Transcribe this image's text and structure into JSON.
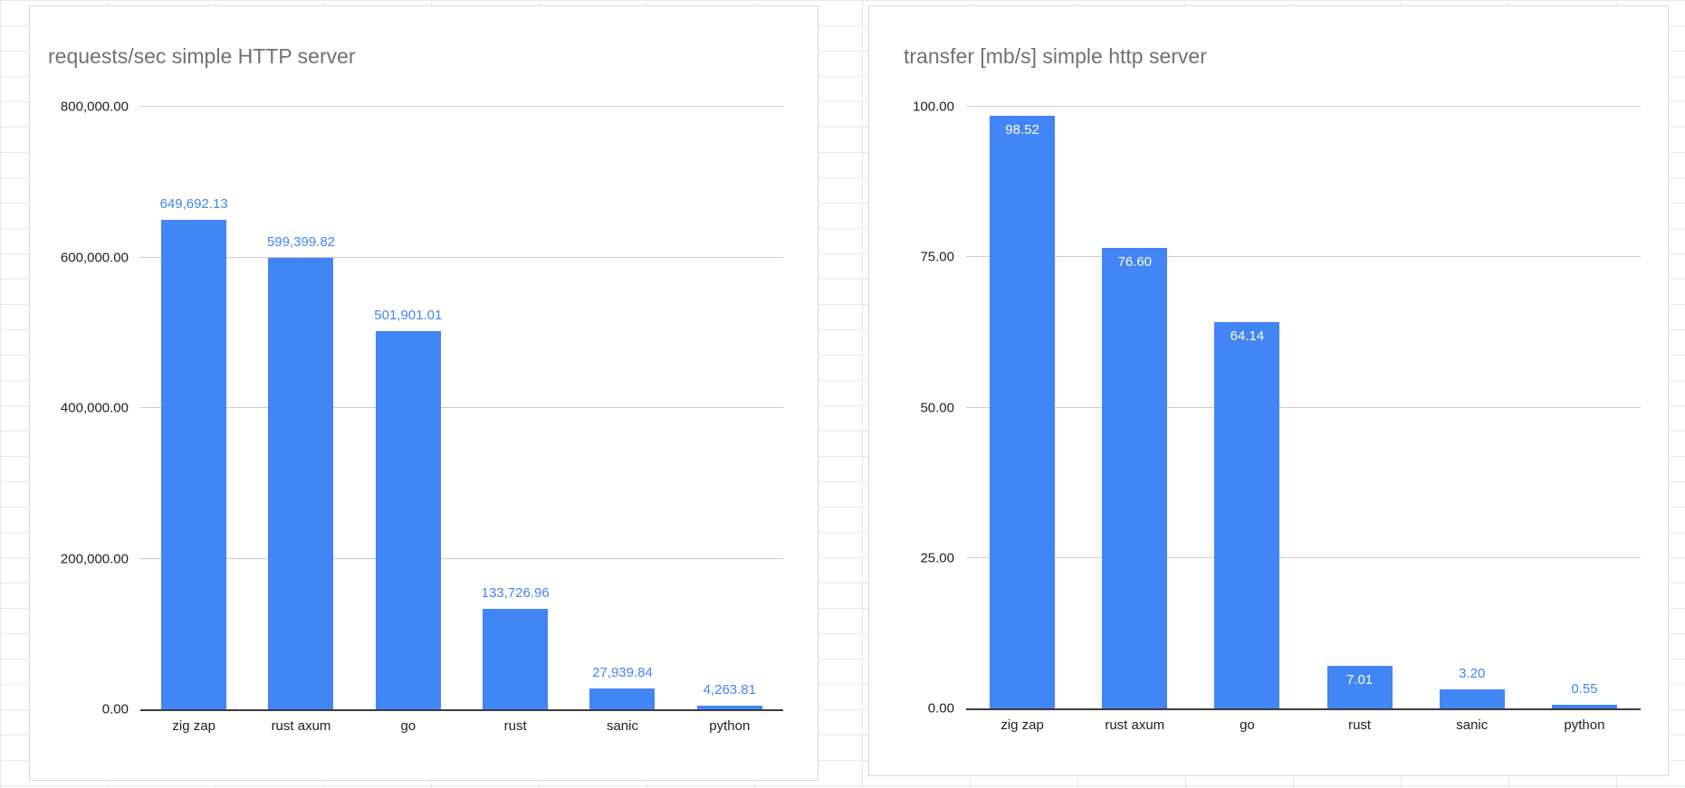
{
  "colors": {
    "bar_blue": "#4285f4",
    "value_label_blue": "#4285f4",
    "inside_label_white": "#ffffff",
    "title_gray": "#717171",
    "gridline_gray": "#cccccc",
    "sheet_gridline": "#e6e8ea"
  },
  "chart_data": [
    {
      "type": "bar",
      "title": "requests/sec simple HTTP server",
      "categories": [
        "zig zap",
        "rust axum",
        "go",
        "rust",
        "sanic",
        "python"
      ],
      "values": [
        649692.13,
        599399.82,
        501901.01,
        133726.96,
        27939.84,
        4263.81
      ],
      "value_labels": [
        "649,692.13",
        "599,399.82",
        "501,901.01",
        "133,726.96",
        "27,939.84",
        "4,263.81"
      ],
      "value_label_position": [
        "above",
        "above",
        "above",
        "above",
        "above",
        "above"
      ],
      "ylim": [
        0,
        800000
      ],
      "yticks": [
        {
          "value": 0,
          "label": "0.00"
        },
        {
          "value": 200000,
          "label": "200,000.00"
        },
        {
          "value": 400000,
          "label": "400,000.00"
        },
        {
          "value": 600000,
          "label": "600,000.00"
        },
        {
          "value": 800000,
          "label": "800,000.00"
        }
      ],
      "grid": true,
      "legend": "none",
      "bar_color": "#4285f4",
      "label_color": "#4285f4",
      "inside_label_color": "#ffffff"
    },
    {
      "type": "bar",
      "title": "transfer [mb/s] simple http server",
      "categories": [
        "zig zap",
        "rust axum",
        "go",
        "rust",
        "sanic",
        "python"
      ],
      "values": [
        98.52,
        76.6,
        64.14,
        7.01,
        3.2,
        0.55
      ],
      "value_labels": [
        "98.52",
        "76.60",
        "64.14",
        "7.01",
        "3.20",
        "0.55"
      ],
      "value_label_position": [
        "inside",
        "inside",
        "inside",
        "inside",
        "above",
        "above"
      ],
      "ylim": [
        0,
        100
      ],
      "yticks": [
        {
          "value": 0,
          "label": "0.00"
        },
        {
          "value": 25,
          "label": "25.00"
        },
        {
          "value": 50,
          "label": "50.00"
        },
        {
          "value": 75,
          "label": "75.00"
        },
        {
          "value": 100,
          "label": "100.00"
        }
      ],
      "grid": true,
      "legend": "none",
      "bar_color": "#4285f4",
      "label_color": "#4285f4",
      "inside_label_color": "#ffffff"
    }
  ]
}
